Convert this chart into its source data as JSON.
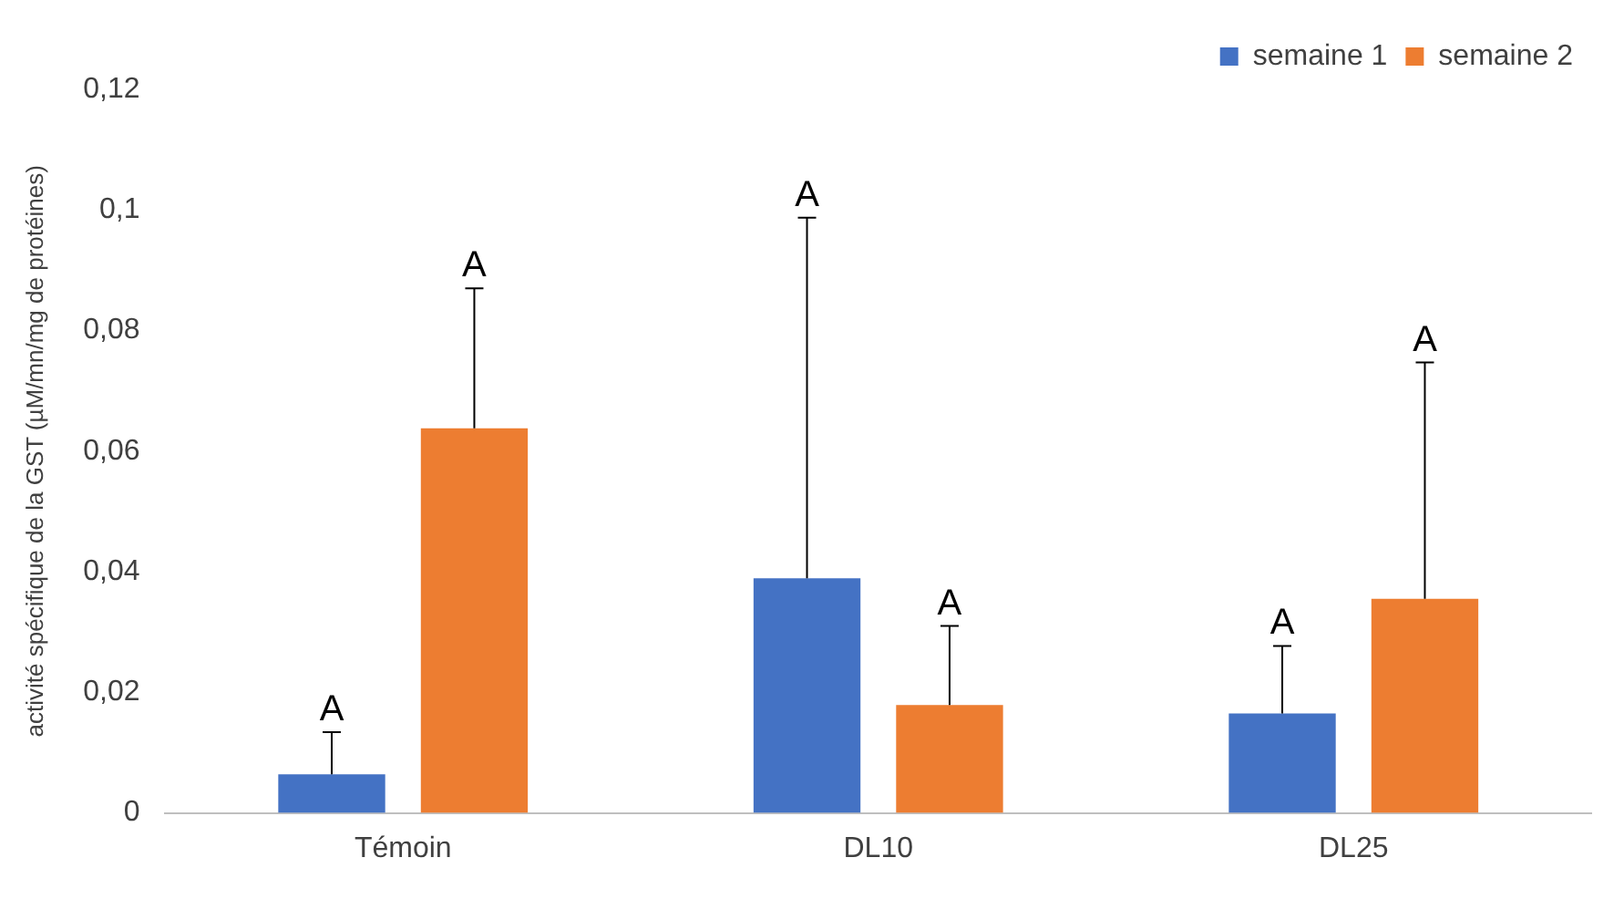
{
  "chart_data": {
    "type": "bar",
    "ylabel": "activité spécifique de la GST (µM/mn/mg de protéines)",
    "categories": [
      "Témoin",
      "DL10",
      "DL25"
    ],
    "series": [
      {
        "name": "semaine 1",
        "color": "#4472c4",
        "values": [
          0.0064,
          0.0389,
          0.0165
        ],
        "errors": [
          [
            0.0064,
            0.0134
          ],
          [
            0.0389,
            0.0987
          ],
          [
            0.0165,
            0.0277
          ]
        ]
      },
      {
        "name": "semaine 2",
        "color": "#ed7d31",
        "values": [
          0.0638,
          0.0179,
          0.0355
        ],
        "errors": [
          [
            0.0638,
            0.087
          ],
          [
            0.0179,
            0.031
          ],
          [
            0.0355,
            0.0747
          ]
        ]
      }
    ],
    "ylim": [
      0,
      0.12
    ],
    "yticks": [
      {
        "value": 0,
        "label": "0"
      },
      {
        "value": 0.02,
        "label": "0,02"
      },
      {
        "value": 0.04,
        "label": "0,04"
      },
      {
        "value": 0.06,
        "label": "0,06"
      },
      {
        "value": 0.08,
        "label": "0,08"
      },
      {
        "value": 0.1,
        "label": "0,1"
      },
      {
        "value": 0.12,
        "label": "0,12"
      }
    ],
    "grid": false,
    "legend": "top right",
    "annotations": [
      "A",
      "A",
      "A",
      "A",
      "A",
      "A"
    ]
  }
}
